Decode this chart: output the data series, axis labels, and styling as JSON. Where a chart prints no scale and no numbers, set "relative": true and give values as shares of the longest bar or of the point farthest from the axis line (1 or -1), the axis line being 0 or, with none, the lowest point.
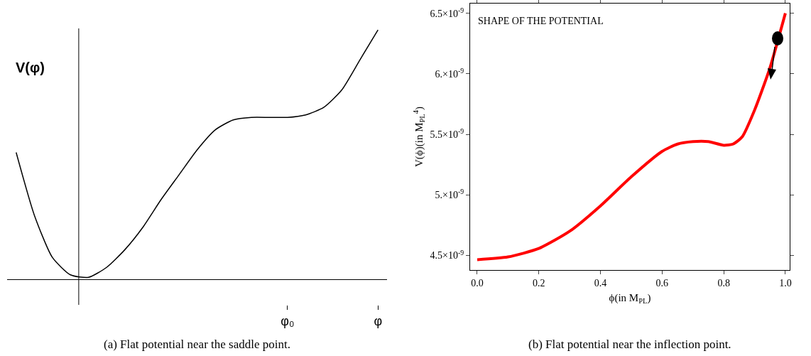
{
  "chart_data": [
    {
      "type": "line",
      "relative": true,
      "ylabel": "V(φ)",
      "categories": [
        null,
        null,
        null,
        null,
        null,
        null,
        null,
        null,
        null,
        null,
        null,
        null,
        null,
        null,
        null,
        "φ₀",
        null,
        null,
        null,
        null,
        "φ"
      ],
      "series": [
        {
          "color": "#000000",
          "values": [
            0.51,
            0.26,
            0.09,
            0.02,
            0.01,
            0.05,
            0.12,
            0.21,
            0.32,
            0.42,
            0.52,
            0.6,
            0.64,
            0.65,
            0.65,
            0.65,
            0.66,
            0.69,
            0.76,
            0.88,
            1
          ]
        }
      ],
      "marker": "none",
      "line_style": "solid",
      "grid": false,
      "annotations": [
        "(a) Flat potential near the saddle point."
      ]
    },
    {
      "type": "line",
      "xlabel": "ϕ(in M$_{PL}$)",
      "ylabel": "V(ϕ)(in M$_{PL}$$^{4}$)",
      "x": [
        0,
        0.1,
        0.2,
        0.3,
        0.4,
        0.5,
        0.6,
        0.65,
        0.7,
        0.75,
        0.8,
        0.83,
        0.86,
        0.9,
        0.95,
        1.0
      ],
      "series": [
        {
          "color": "#ff0000",
          "values": [
            4.465e-09,
            4.488e-09,
            4.558e-09,
            4.7e-09,
            4.91e-09,
            5.15e-09,
            5.36e-09,
            5.42e-09,
            5.44e-09,
            5.44e-09,
            5.41e-09,
            5.42e-09,
            5.48e-09,
            5.7e-09,
            6.05e-09,
            6.5e-09
          ]
        }
      ],
      "xlim": [
        -0.023,
        1.014
      ],
      "xticks": [
        {
          "value": 0,
          "label": "0.0"
        },
        0.2,
        0.4,
        0.6,
        0.8,
        {
          "value": 1,
          "label": "1.0"
        }
      ],
      "ylim": [
        4.38e-09,
        6.58e-09
      ],
      "yticks": [
        {
          "value": 4.5e-09,
          "label": "4.5×10$^{-9}$"
        },
        {
          "value": 5e-09,
          "label": "5.×10$^{-9}$"
        },
        {
          "value": 5.5e-09,
          "label": "5.5×10$^{-9}$"
        },
        {
          "value": 6e-09,
          "label": "6.×10$^{-9}$"
        },
        {
          "value": 6.5e-09,
          "label": "6.5×10$^{-9}$"
        }
      ],
      "marker": "none",
      "line_style": "solid",
      "grid": false,
      "annotations": [
        "SHAPE OF THE POTENTIAL",
        "(b) Flat potential near the inflection point."
      ]
    }
  ]
}
